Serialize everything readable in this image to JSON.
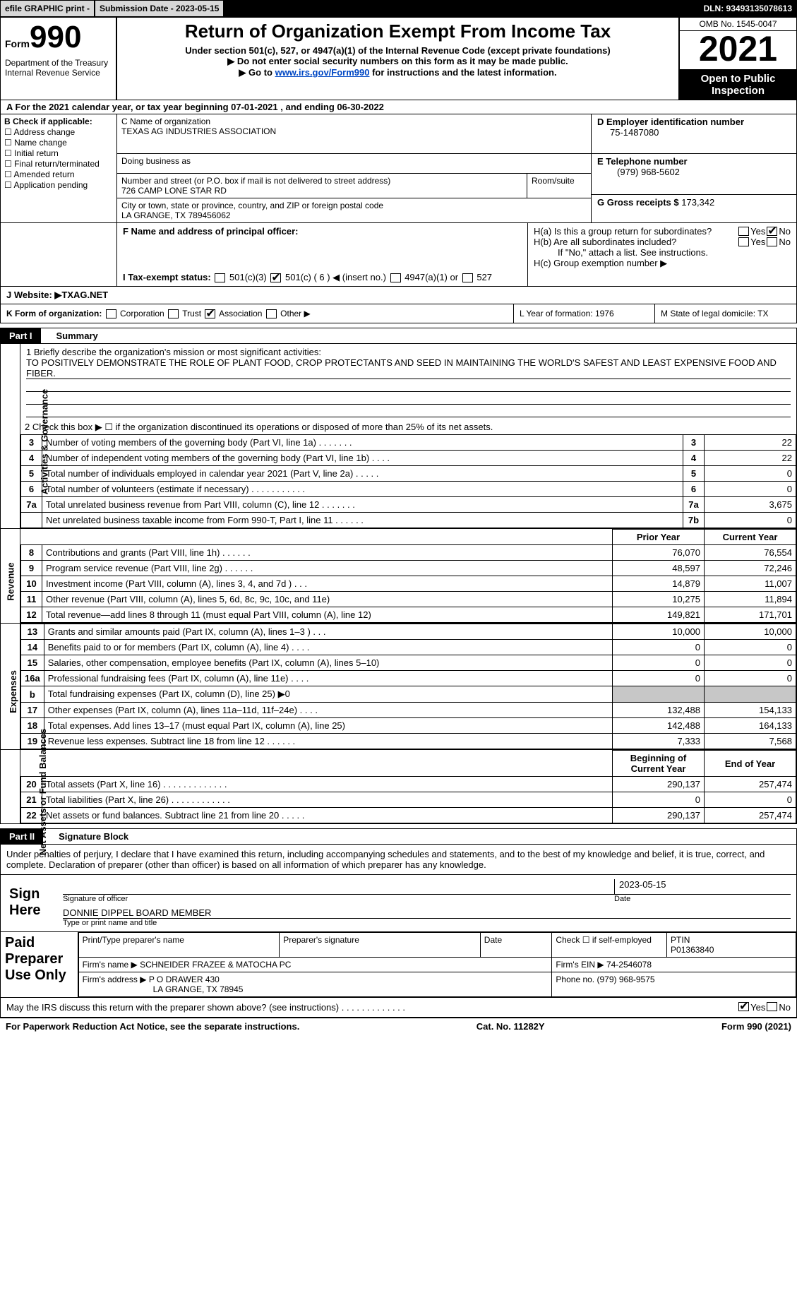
{
  "topbar": {
    "efile": "efile GRAPHIC print -",
    "submission": "Submission Date - 2023-05-15",
    "dln": "DLN: 93493135078613"
  },
  "header": {
    "form_label": "Form",
    "form_num": "990",
    "dept": "Department of the Treasury Internal Revenue Service",
    "title": "Return of Organization Exempt From Income Tax",
    "subtitle": "Under section 501(c), 527, or 4947(a)(1) of the Internal Revenue Code (except private foundations)",
    "note1": "▶ Do not enter social security numbers on this form as it may be made public.",
    "note2_pre": "▶ Go to ",
    "note2_link": "www.irs.gov/Form990",
    "note2_post": " for instructions and the latest information.",
    "omb": "OMB No. 1545-0047",
    "year": "2021",
    "open": "Open to Public Inspection"
  },
  "row_a": "A For the 2021 calendar year, or tax year beginning 07-01-2021    , and ending 06-30-2022",
  "col_b": {
    "hdr": "B Check if applicable:",
    "c1": "Address change",
    "c2": "Name change",
    "c3": "Initial return",
    "c4": "Final return/terminated",
    "c5": "Amended return",
    "c6": "Application pending"
  },
  "col_c": {
    "name_lbl": "C Name of organization",
    "name": "TEXAS AG INDUSTRIES ASSOCIATION",
    "dba": "Doing business as",
    "addr_lbl": "Number and street (or P.O. box if mail is not delivered to street address)",
    "room": "Room/suite",
    "addr": "726 CAMP LONE STAR RD",
    "city_lbl": "City or town, state or province, country, and ZIP or foreign postal code",
    "city": "LA GRANGE, TX  789456062"
  },
  "col_d": {
    "ein_lbl": "D Employer identification number",
    "ein": "75-1487080",
    "tel_lbl": "E Telephone number",
    "tel": "(979) 968-5602",
    "gross_lbl": "G Gross receipts $",
    "gross": "173,342"
  },
  "row_f": {
    "f_lbl": "F  Name and address of principal officer:",
    "ha": "H(a)  Is this a group return for subordinates?",
    "hb": "H(b)  Are all subordinates included?",
    "hb_note": "If \"No,\" attach a list. See instructions.",
    "hc": "H(c)  Group exemption number ▶",
    "yes": "Yes",
    "no": "No"
  },
  "tax_status": {
    "lbl": "I  Tax-exempt status:",
    "o1": "501(c)(3)",
    "o2": "501(c) ( 6 ) ◀ (insert no.)",
    "o3": "4947(a)(1) or",
    "o4": "527"
  },
  "website": {
    "lbl": "J  Website: ▶  ",
    "val": "TXAG.NET"
  },
  "row_k": {
    "lbl": "K Form of organization:",
    "o1": "Corporation",
    "o2": "Trust",
    "o3": "Association",
    "o4": "Other ▶",
    "l": "L Year of formation: 1976",
    "m": "M State of legal domicile: TX"
  },
  "part1": {
    "num": "Part I",
    "title": "Summary"
  },
  "mission": {
    "lbl": "1  Briefly describe the organization's mission or most significant activities:",
    "text": "TO POSITIVELY DEMONSTRATE THE ROLE OF PLANT FOOD, CROP PROTECTANTS AND SEED IN MAINTAINING THE WORLD'S SAFEST AND LEAST EXPENSIVE FOOD AND FIBER."
  },
  "side": {
    "gov": "Activities & Governance",
    "rev": "Revenue",
    "exp": "Expenses",
    "net": "Net Assets or Fund Balances"
  },
  "line2": "2     Check this box ▶ ☐  if the organization discontinued its operations or disposed of more than 25% of its net assets.",
  "gov_lines": [
    {
      "n": "3",
      "t": "Number of voting members of the governing body (Part VI, line 1a)   .    .    .    .    .    .    .",
      "b": "3",
      "v": "22"
    },
    {
      "n": "4",
      "t": "Number of independent voting members of the governing body (Part VI, line 1b)   .    .    .    .",
      "b": "4",
      "v": "22"
    },
    {
      "n": "5",
      "t": "Total number of individuals employed in calendar year 2021 (Part V, line 2a)   .    .    .    .    .",
      "b": "5",
      "v": "0"
    },
    {
      "n": "6",
      "t": "Total number of volunteers (estimate if necessary)    .    .    .    .    .    .    .    .    .    .    .",
      "b": "6",
      "v": "0"
    },
    {
      "n": "7a",
      "t": "Total unrelated business revenue from Part VIII, column (C), line 12    .    .    .    .    .    .    .",
      "b": "7a",
      "v": "3,675"
    },
    {
      "n": "",
      "t": "Net unrelated business taxable income from Form 990-T, Part I, line 11   .    .    .    .    .    .",
      "b": "7b",
      "v": "0"
    }
  ],
  "py_hdr": "Prior Year",
  "cy_hdr": "Current Year",
  "rev_lines": [
    {
      "n": "8",
      "t": "Contributions and grants (Part VIII, line 1h)    .    .    .    .    .    .",
      "py": "76,070",
      "cy": "76,554"
    },
    {
      "n": "9",
      "t": "Program service revenue (Part VIII, line 2g)    .    .    .    .    .    .",
      "py": "48,597",
      "cy": "72,246"
    },
    {
      "n": "10",
      "t": "Investment income (Part VIII, column (A), lines 3, 4, and 7d )    .    .    .",
      "py": "14,879",
      "cy": "11,007"
    },
    {
      "n": "11",
      "t": "Other revenue (Part VIII, column (A), lines 5, 6d, 8c, 9c, 10c, and 11e)",
      "py": "10,275",
      "cy": "11,894"
    },
    {
      "n": "12",
      "t": "Total revenue—add lines 8 through 11 (must equal Part VIII, column (A), line 12)",
      "py": "149,821",
      "cy": "171,701"
    }
  ],
  "exp_lines": [
    {
      "n": "13",
      "t": "Grants and similar amounts paid (Part IX, column (A), lines 1–3 )   .    .    .",
      "py": "10,000",
      "cy": "10,000"
    },
    {
      "n": "14",
      "t": "Benefits paid to or for members (Part IX, column (A), line 4)   .    .    .    .",
      "py": "0",
      "cy": "0"
    },
    {
      "n": "15",
      "t": "Salaries, other compensation, employee benefits (Part IX, column (A), lines 5–10)",
      "py": "0",
      "cy": "0"
    },
    {
      "n": "16a",
      "t": "Professional fundraising fees (Part IX, column (A), line 11e)    .    .    .    .",
      "py": "0",
      "cy": "0"
    },
    {
      "n": "b",
      "t": "Total fundraising expenses (Part IX, column (D), line 25) ▶0",
      "py": "gray",
      "cy": "gray"
    },
    {
      "n": "17",
      "t": "Other expenses (Part IX, column (A), lines 11a–11d, 11f–24e)    .    .    .    .",
      "py": "132,488",
      "cy": "154,133"
    },
    {
      "n": "18",
      "t": "Total expenses. Add lines 13–17 (must equal Part IX, column (A), line 25)",
      "py": "142,488",
      "cy": "164,133"
    },
    {
      "n": "19",
      "t": "Revenue less expenses. Subtract line 18 from line 12   .    .    .    .    .    .",
      "py": "7,333",
      "cy": "7,568"
    }
  ],
  "boy_hdr": "Beginning of Current Year",
  "eoy_hdr": "End of Year",
  "net_lines": [
    {
      "n": "20",
      "t": "Total assets (Part X, line 16)   .    .    .    .    .    .    .    .    .    .    .    .    .",
      "py": "290,137",
      "cy": "257,474"
    },
    {
      "n": "21",
      "t": "Total liabilities (Part X, line 26)   .    .    .    .    .    .    .    .    .    .    .    .",
      "py": "0",
      "cy": "0"
    },
    {
      "n": "22",
      "t": "Net assets or fund balances. Subtract line 21 from line 20   .    .    .    .    .",
      "py": "290,137",
      "cy": "257,474"
    }
  ],
  "part2": {
    "num": "Part II",
    "title": "Signature Block"
  },
  "penalties": "Under penalties of perjury, I declare that I have examined this return, including accompanying schedules and statements, and to the best of my knowledge and belief, it is true, correct, and complete. Declaration of preparer (other than officer) is based on all information of which preparer has any knowledge.",
  "sign": {
    "here": "Sign Here",
    "sig_lbl": "Signature of officer",
    "date_lbl": "Date",
    "date": "2023-05-15",
    "name": "DONNIE DIPPEL  BOARD MEMBER",
    "name_lbl": "Type or print name and title"
  },
  "paid": {
    "title": "Paid Preparer Use Only",
    "h1": "Print/Type preparer's name",
    "h2": "Preparer's signature",
    "h3": "Date",
    "h4": "Check ☐ if self-employed",
    "h5": "PTIN",
    "ptin": "P01363840",
    "firm_lbl": "Firm's name      ▶",
    "firm": "SCHNEIDER FRAZEE & MATOCHA PC",
    "ein_lbl": "Firm's EIN ▶",
    "ein": "74-2546078",
    "addr_lbl": "Firm's address ▶",
    "addr1": "P O DRAWER 430",
    "addr2": "LA GRANGE, TX  78945",
    "phone_lbl": "Phone no.",
    "phone": "(979) 968-9575"
  },
  "discuss": "May the IRS discuss this return with the preparer shown above? (see instructions)    .    .    .    .    .    .    .    .    .    .    .    .    .",
  "footer": {
    "pra": "For Paperwork Reduction Act Notice, see the separate instructions.",
    "cat": "Cat. No. 11282Y",
    "form": "Form 990 (2021)"
  }
}
